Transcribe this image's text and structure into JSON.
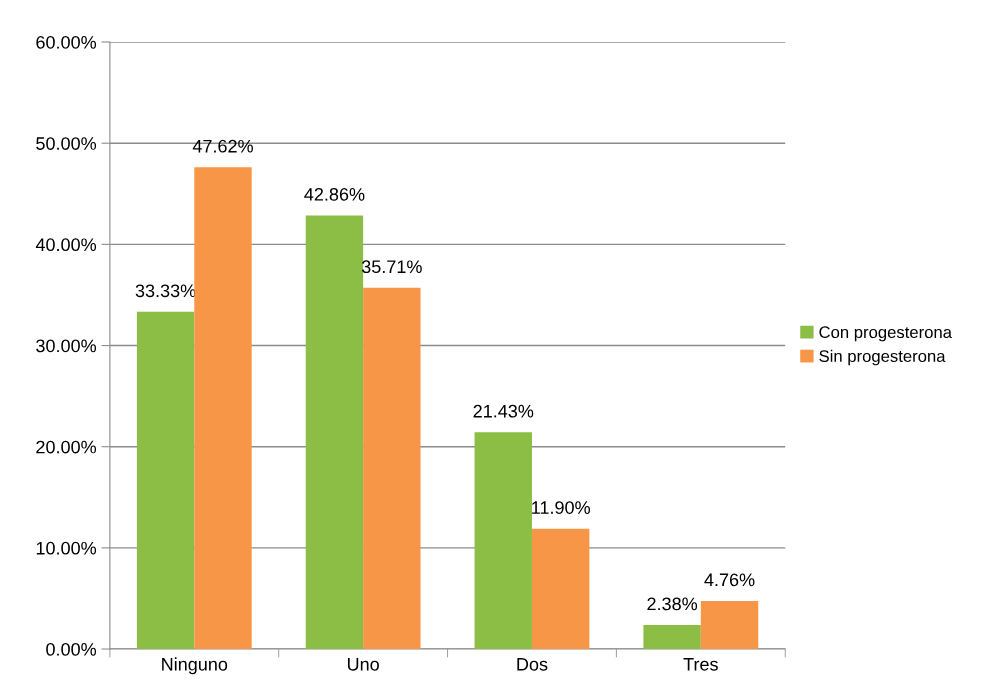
{
  "chart_data": {
    "type": "bar",
    "categories": [
      "Ninguno",
      "Uno",
      "Dos",
      "Tres"
    ],
    "series": [
      {
        "name": "Con progesterona",
        "color": "#8cbd45",
        "values": [
          33.33,
          42.86,
          21.43,
          2.38
        ],
        "value_labels": [
          "33.33%",
          "42.86%",
          "21.43%",
          "2.38%"
        ]
      },
      {
        "name": "Sin progesterona",
        "color": "#f79646",
        "values": [
          47.62,
          35.71,
          11.9,
          4.76
        ],
        "value_labels": [
          "47.62%",
          "35.71%",
          "11.90%",
          "4.76%"
        ]
      }
    ],
    "ylim": [
      0,
      60
    ],
    "yticks": [
      {
        "value": 0,
        "label": "0.00%"
      },
      {
        "value": 10,
        "label": "10.00%"
      },
      {
        "value": 20,
        "label": "20.00%"
      },
      {
        "value": 30,
        "label": "30.00%"
      },
      {
        "value": 40,
        "label": "40.00%"
      },
      {
        "value": 50,
        "label": "50.00%"
      },
      {
        "value": 60,
        "label": "60.00%"
      }
    ],
    "grid": "y",
    "legend": "right"
  }
}
